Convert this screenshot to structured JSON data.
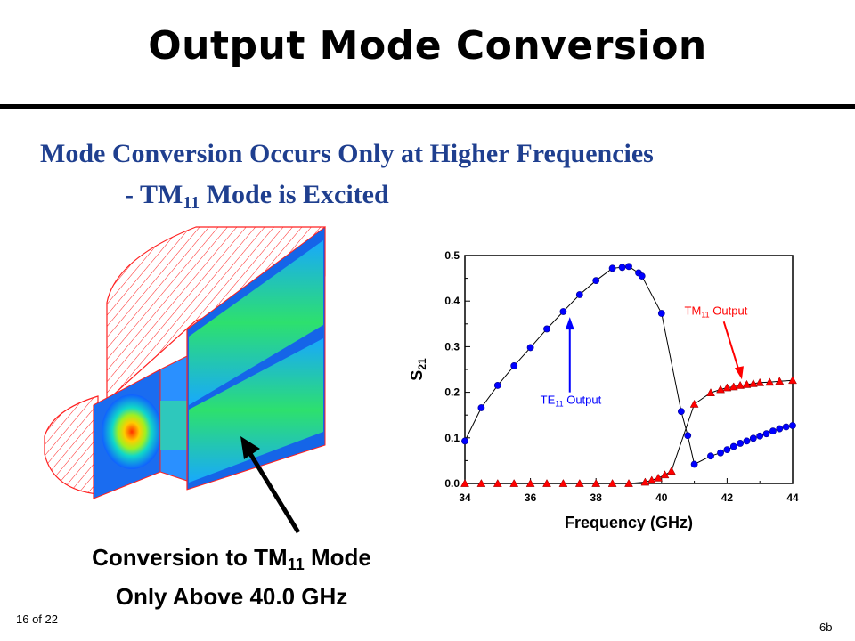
{
  "slide": {
    "title": "Output Mode Conversion",
    "subtitle_line1": "Mode Conversion  Occurs Only at Higher Frequencies",
    "subtitle_line2_prefix": "- TM",
    "subtitle_line2_sub": "11",
    "subtitle_line2_suffix": " Mode is Excited",
    "caption_line1_prefix": "Conversion to TM",
    "caption_line1_sub": "11",
    "caption_line1_suffix": " Mode",
    "caption_line2": "Only Above 40.0 GHz",
    "page_number": "16 of 22",
    "slide_id": "6b"
  },
  "colors": {
    "subtitle": "#1f3f8f",
    "te11": "#0000ff",
    "tm11": "#ff0000"
  },
  "chart_data": {
    "type": "scatter",
    "xlabel": "Frequency (GHz)",
    "ylabel": "S",
    "ylabel_sub": "21",
    "xlim": [
      34,
      44
    ],
    "ylim": [
      0.0,
      0.5
    ],
    "xticks": [
      "34",
      "36",
      "38",
      "40",
      "42",
      "44"
    ],
    "xtick_values": [
      34,
      36,
      38,
      40,
      42,
      44
    ],
    "yticks": [
      "0.0",
      "0.1",
      "0.2",
      "0.3",
      "0.4",
      "0.5"
    ],
    "ytick_values": [
      0.0,
      0.1,
      0.2,
      0.3,
      0.4,
      0.5
    ],
    "grid": false,
    "series": [
      {
        "label_main": "TE",
        "label_sub": "11",
        "label_rest": " Output",
        "marker": "circle",
        "x": [
          34.0,
          34.5,
          35.0,
          35.5,
          36.0,
          36.5,
          37.0,
          37.5,
          38.0,
          38.5,
          38.8,
          39.0,
          39.3,
          39.4,
          40.0,
          40.6,
          40.8,
          41.0,
          41.5,
          41.8,
          42.0,
          42.2,
          42.4,
          42.6,
          42.8,
          43.0,
          43.2,
          43.4,
          43.6,
          43.8,
          44.0
        ],
        "y": [
          0.093,
          0.166,
          0.215,
          0.258,
          0.298,
          0.339,
          0.377,
          0.414,
          0.445,
          0.472,
          0.474,
          0.476,
          0.462,
          0.455,
          0.373,
          0.158,
          0.105,
          0.042,
          0.06,
          0.067,
          0.074,
          0.081,
          0.088,
          0.093,
          0.099,
          0.104,
          0.109,
          0.115,
          0.12,
          0.124,
          0.127
        ]
      },
      {
        "label_main": "TM",
        "label_sub": "11",
        "label_rest": " Output",
        "marker": "triangle",
        "x": [
          34.0,
          34.5,
          35.0,
          35.5,
          36.0,
          36.5,
          37.0,
          37.5,
          38.0,
          38.5,
          39.0,
          39.5,
          39.7,
          39.9,
          40.1,
          40.3,
          41.0,
          41.5,
          41.8,
          42.0,
          42.2,
          42.4,
          42.6,
          42.8,
          43.0,
          43.3,
          43.6,
          44.0
        ],
        "y": [
          0.0,
          0.0,
          0.0,
          0.0,
          0.0,
          0.0,
          0.0,
          0.0,
          0.0,
          0.0,
          0.0,
          0.003,
          0.007,
          0.012,
          0.019,
          0.027,
          0.174,
          0.199,
          0.206,
          0.21,
          0.212,
          0.215,
          0.217,
          0.219,
          0.221,
          0.222,
          0.224,
          0.226
        ]
      }
    ]
  }
}
